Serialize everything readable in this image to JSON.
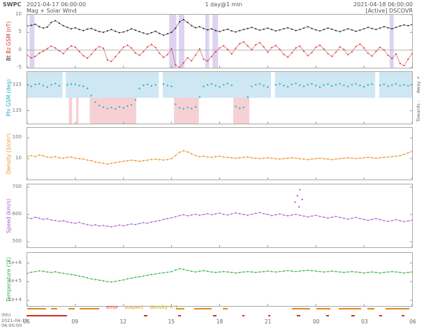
{
  "header": {
    "brand": "SWPC",
    "start_datetime": "2021-04-17 06:00:00",
    "subtitle": "Mag + Solar Wind",
    "resolution": "1 day@1 min",
    "end_datetime": "2021-04-18 06:00:00",
    "source": "[Active] DSCOVR"
  },
  "x_axis": {
    "span_hours": 24,
    "step_hours": 0.25,
    "tick_hours": [
      0,
      3,
      6,
      9,
      12,
      15,
      18,
      21,
      24
    ],
    "tick_labels": [
      "06",
      "09",
      "12",
      "15",
      "18",
      "21",
      "00",
      "03",
      "06"
    ],
    "unit_label": "(hh)",
    "start_date": "2021-04-17",
    "start_time": "06:00:00"
  },
  "chart_data": [
    {
      "id": "mag",
      "type": "scatter",
      "scale": "linear",
      "ylim": [
        -5,
        10
      ],
      "yticks": [
        {
          "v": 10,
          "label": "10"
        },
        {
          "v": 5,
          "label": "5"
        },
        {
          "v": 0,
          "label": "0"
        },
        {
          "v": -5,
          "label": "-5"
        }
      ],
      "ylabel_parts": [
        {
          "text": "Bt ",
          "color": "#1a1a1a"
        },
        {
          "text": "Bz GSM (nT)",
          "color": "#d62f2f"
        }
      ],
      "hlines": [
        0
      ],
      "bands": [
        {
          "t0": 0.15,
          "t1": 0.45,
          "color": "#ded2f2"
        },
        {
          "t0": 8.85,
          "t1": 9.3,
          "color": "#ded2f2"
        },
        {
          "t0": 9.45,
          "t1": 9.8,
          "color": "#ded2f2"
        },
        {
          "t0": 11.1,
          "t1": 11.35,
          "color": "#ded2f2"
        },
        {
          "t0": 11.55,
          "t1": 11.9,
          "color": "#ded2f2"
        },
        {
          "t0": 22.6,
          "t1": 22.85,
          "color": "#ded2f2"
        }
      ],
      "series": [
        {
          "name": "Bt",
          "color": "#1a1a1a",
          "values": [
            6.8,
            7.0,
            7.3,
            6.6,
            6.2,
            6.5,
            7.8,
            8.3,
            7.6,
            6.9,
            6.4,
            6.0,
            6.3,
            5.8,
            5.5,
            5.9,
            6.1,
            5.6,
            5.2,
            5.0,
            5.4,
            5.8,
            5.3,
            4.9,
            5.1,
            5.5,
            6.0,
            5.6,
            5.2,
            4.8,
            4.5,
            4.9,
            5.3,
            4.7,
            4.2,
            4.6,
            5.0,
            6.2,
            8.0,
            8.6,
            7.8,
            6.9,
            6.3,
            6.6,
            6.1,
            5.7,
            6.0,
            5.5,
            5.2,
            5.6,
            5.9,
            5.4,
            5.1,
            5.5,
            5.8,
            6.1,
            6.4,
            6.0,
            5.6,
            5.9,
            6.2,
            5.8,
            5.4,
            5.7,
            6.0,
            6.3,
            5.9,
            5.5,
            5.8,
            6.2,
            6.6,
            6.1,
            5.7,
            5.4,
            5.8,
            6.2,
            5.9,
            5.5,
            5.2,
            5.6,
            6.0,
            5.7,
            5.3,
            5.6,
            6.0,
            6.4,
            6.1,
            5.8,
            6.2,
            6.6,
            6.3,
            6.0,
            6.4,
            6.8,
            7.1,
            6.9,
            7.2
          ]
        },
        {
          "name": "Bz",
          "color": "#d62f2f",
          "values": [
            -1.5,
            -2.2,
            -1.8,
            -0.9,
            -0.3,
            0.4,
            1.1,
            0.6,
            -0.2,
            -1.0,
            0.3,
            1.2,
            0.8,
            -0.4,
            -1.6,
            -2.3,
            -1.2,
            0.2,
            1.0,
            0.5,
            -2.8,
            -3.2,
            -1.9,
            -0.6,
            0.8,
            1.4,
            0.6,
            -0.8,
            -1.5,
            -0.4,
            0.9,
            1.6,
            0.7,
            -0.9,
            -2.1,
            -1.3,
            0.4,
            -4.2,
            -5.0,
            -3.6,
            -2.2,
            -3.0,
            -1.4,
            0.3,
            -2.6,
            -3.1,
            -1.8,
            -0.5,
            0.6,
            1.2,
            0.2,
            -1.1,
            0.5,
            1.8,
            2.3,
            1.2,
            0.1,
            1.5,
            2.1,
            0.9,
            -0.6,
            0.7,
            1.3,
            0.2,
            -1.2,
            -2.0,
            -0.8,
            0.6,
            1.1,
            -0.3,
            -1.6,
            -0.7,
            0.8,
            1.4,
            0.3,
            -1.0,
            -1.8,
            -0.6,
            0.9,
            0.2,
            -1.3,
            -0.5,
            1.0,
            1.7,
            0.6,
            -0.9,
            -1.7,
            -0.4,
            0.8,
            0.1,
            -1.5,
            -2.4,
            -1.1,
            -3.8,
            -4.4,
            -2.6,
            -1.0
          ]
        }
      ]
    },
    {
      "id": "phi",
      "type": "scatter",
      "scale": "linear",
      "ylim": [
        45,
        405
      ],
      "yticks": [
        {
          "v": 315,
          "label": "315"
        },
        {
          "v": 135,
          "label": "135"
        }
      ],
      "ylabel_parts": [
        {
          "text": "Phi GSM (deg)",
          "color": "#2aa8bf"
        }
      ],
      "right_labels": {
        "top": "Away +",
        "bottom": "Towards -"
      },
      "bands": [
        {
          "v0": 225,
          "v1": 405,
          "color": "#cfe7f3"
        },
        {
          "t0": 3.9,
          "t1": 6.8,
          "v0": 45,
          "v1": 225,
          "color": "#f6d0d4"
        },
        {
          "t0": 9.15,
          "t1": 10.7,
          "v0": 45,
          "v1": 225,
          "color": "#f6d0d4"
        },
        {
          "t0": 12.85,
          "t1": 13.85,
          "v0": 45,
          "v1": 225,
          "color": "#f6d0d4"
        },
        {
          "t0": 2.6,
          "t1": 2.8,
          "v0": 45,
          "v1": 225,
          "color": "#f6d0d4"
        },
        {
          "t0": 3.05,
          "t1": 3.2,
          "v0": 45,
          "v1": 225,
          "color": "#f6d0d4"
        },
        {
          "t0": 2.2,
          "t1": 2.4,
          "color": "#ffffff"
        },
        {
          "t0": 8.2,
          "t1": 8.45,
          "color": "#ffffff"
        },
        {
          "t0": 15.2,
          "t1": 15.45,
          "color": "#ffffff"
        },
        {
          "t0": 21.7,
          "t1": 21.95,
          "color": "#ffffff"
        }
      ],
      "series": [
        {
          "name": "Phi",
          "color": "#29b6c8",
          "line": false,
          "dot": 1.2,
          "values": [
            312,
            305,
            318,
            322,
            310,
            300,
            316,
            324,
            308,
            null,
            315,
            320,
            318,
            310,
            305,
            290,
            240,
            195,
            172,
            160,
            150,
            158,
            148,
            162,
            155,
            168,
            175,
            210,
            290,
            312,
            318,
            308,
            315,
            null,
            320,
            310,
            305,
            180,
            155,
            148,
            158,
            150,
            162,
            230,
            305,
            315,
            322,
            310,
            300,
            316,
            324,
            312,
            165,
            152,
            158,
            230,
            304,
            316,
            322,
            310,
            300,
            null,
            315,
            322,
            310,
            302,
            318,
            325,
            312,
            305,
            316,
            322,
            310,
            300,
            314,
            320,
            308,
            315,
            323,
            312,
            304,
            316,
            322,
            310,
            302,
            314,
            320,
            null,
            312,
            318,
            306,
            314,
            322,
            310,
            316,
            308,
            315
          ]
        }
      ]
    },
    {
      "id": "density",
      "type": "scatter",
      "scale": "log",
      "ylim": [
        1,
        300
      ],
      "yticks": [
        {
          "v": 100,
          "label": "100"
        },
        {
          "v": 10,
          "label": "10"
        }
      ],
      "ylabel_parts": [
        {
          "text": "Density (1/cm³)",
          "color": "#f08c1e"
        }
      ],
      "series": [
        {
          "name": "Density",
          "color": "#f08c1e",
          "values": [
            13,
            14,
            12.5,
            15,
            13.5,
            12,
            11.5,
            12.5,
            11,
            10.5,
            11.5,
            12,
            10.5,
            10,
            9.5,
            8.5,
            8,
            7,
            6.5,
            6,
            5.5,
            6,
            6.5,
            7,
            7.5,
            8,
            8.5,
            8,
            7.5,
            8,
            8.5,
            9,
            9.5,
            9,
            8.5,
            9,
            10,
            14,
            20,
            24,
            21,
            17,
            14,
            12.5,
            13,
            12,
            11.5,
            12.5,
            13,
            12,
            11.5,
            11,
            10.5,
            11,
            11.5,
            12,
            11,
            10.5,
            10,
            10.5,
            11,
            10.5,
            10,
            9.5,
            10,
            10.5,
            11,
            10.5,
            10,
            9.5,
            9,
            9.5,
            10,
            10.5,
            10,
            9.5,
            9,
            9.5,
            10,
            10.5,
            11,
            10.5,
            10,
            10.5,
            11,
            11.5,
            11,
            10.5,
            11,
            11.5,
            12,
            12.5,
            13,
            14,
            16,
            19,
            22
          ]
        }
      ]
    },
    {
      "id": "speed",
      "type": "scatter",
      "scale": "linear",
      "ylim": [
        480,
        710
      ],
      "yticks": [
        {
          "v": 700,
          "label": "700"
        },
        {
          "v": 600,
          "label": "600"
        },
        {
          "v": 500,
          "label": "500"
        }
      ],
      "ylabel_parts": [
        {
          "text": "Speed (km/s)",
          "color": "#a95fd6"
        }
      ],
      "series": [
        {
          "name": "Speed",
          "color": "#a95fd6",
          "values": [
            588,
            585,
            590,
            586,
            582,
            584,
            580,
            578,
            575,
            577,
            573,
            570,
            568,
            571,
            566,
            563,
            560,
            562,
            558,
            560,
            557,
            555,
            558,
            561,
            559,
            562,
            565,
            563,
            567,
            570,
            568,
            572,
            575,
            578,
            582,
            585,
            588,
            592,
            596,
            599,
            595,
            598,
            601,
            597,
            600,
            603,
            599,
            602,
            605,
            601,
            598,
            602,
            606,
            603,
            600,
            597,
            601,
            604,
            607,
            603,
            600,
            596,
            599,
            602,
            598,
            595,
            598,
            601,
            597,
            594,
            591,
            594,
            597,
            593,
            590,
            587,
            590,
            593,
            589,
            586,
            583,
            586,
            589,
            585,
            582,
            579,
            582,
            585,
            581,
            578,
            575,
            578,
            581,
            577,
            574,
            576,
            579
          ]
        },
        {
          "name": "Speed-outliers",
          "color": "#a95fd6",
          "line": false,
          "dot": 1.2,
          "points": [
            [
              16.7,
              645
            ],
            [
              16.85,
              668
            ],
            [
              16.95,
              628
            ],
            [
              17.0,
              690
            ],
            [
              17.15,
              655
            ]
          ]
        }
      ]
    },
    {
      "id": "temp",
      "type": "scatter",
      "scale": "log",
      "ylim": [
        5000,
        3500000
      ],
      "yticks": [
        {
          "v": 1000000,
          "label": "1e+6"
        },
        {
          "v": 100000,
          "label": "1e+5"
        },
        {
          "v": 10000,
          "label": "1e+4"
        }
      ],
      "ylabel_parts": [
        {
          "text": "Temperature (°K)",
          "color": "#35b34a"
        }
      ],
      "series": [
        {
          "name": "Temperature",
          "color": "#35b34a",
          "values": [
            280000,
            320000,
            350000,
            380000,
            360000,
            330000,
            310000,
            340000,
            300000,
            280000,
            260000,
            240000,
            220000,
            200000,
            180000,
            160000,
            140000,
            130000,
            120000,
            110000,
            100000,
            95000,
            105000,
            115000,
            125000,
            140000,
            155000,
            170000,
            185000,
            200000,
            220000,
            240000,
            260000,
            280000,
            300000,
            320000,
            350000,
            420000,
            500000,
            460000,
            400000,
            360000,
            330000,
            360000,
            390000,
            360000,
            330000,
            310000,
            330000,
            350000,
            330000,
            310000,
            290000,
            310000,
            330000,
            350000,
            330000,
            310000,
            330000,
            350000,
            370000,
            350000,
            330000,
            350000,
            370000,
            390000,
            370000,
            350000,
            370000,
            390000,
            410000,
            390000,
            370000,
            350000,
            330000,
            350000,
            370000,
            350000,
            330000,
            310000,
            330000,
            350000,
            330000,
            310000,
            290000,
            310000,
            330000,
            310000,
            290000,
            310000,
            330000,
            350000,
            330000,
            310000,
            290000,
            310000,
            330000
          ]
        }
      ]
    }
  ],
  "flags": {
    "legend": [
      {
        "label": "error",
        "color": "#d42a2a"
      },
      {
        "label": "suspect",
        "color": "#e08a1e"
      },
      {
        "label": "density < 1",
        "color": "#c8a400"
      }
    ],
    "suspect_intervals": [
      [
        0.05,
        1.2
      ],
      [
        1.5,
        1.9
      ],
      [
        2.6,
        3.0
      ],
      [
        3.3,
        4.5
      ],
      [
        9.3,
        9.8
      ],
      [
        10.4,
        11.5
      ],
      [
        12.2,
        12.5
      ],
      [
        16.5,
        17.6
      ],
      [
        18.0,
        18.9
      ],
      [
        19.4,
        20.8
      ],
      [
        21.2,
        21.6
      ],
      [
        22.3,
        23.8
      ]
    ],
    "error_intervals": [
      [
        0.0,
        2.5
      ],
      [
        7.3,
        7.5
      ],
      [
        9.4,
        9.6
      ],
      [
        11.6,
        11.8
      ],
      [
        13.4,
        13.55
      ],
      [
        15.0,
        15.15
      ],
      [
        16.8,
        17.0
      ],
      [
        18.6,
        18.8
      ],
      [
        20.2,
        20.4
      ],
      [
        21.9,
        22.1
      ],
      [
        23.3,
        23.5
      ]
    ]
  }
}
